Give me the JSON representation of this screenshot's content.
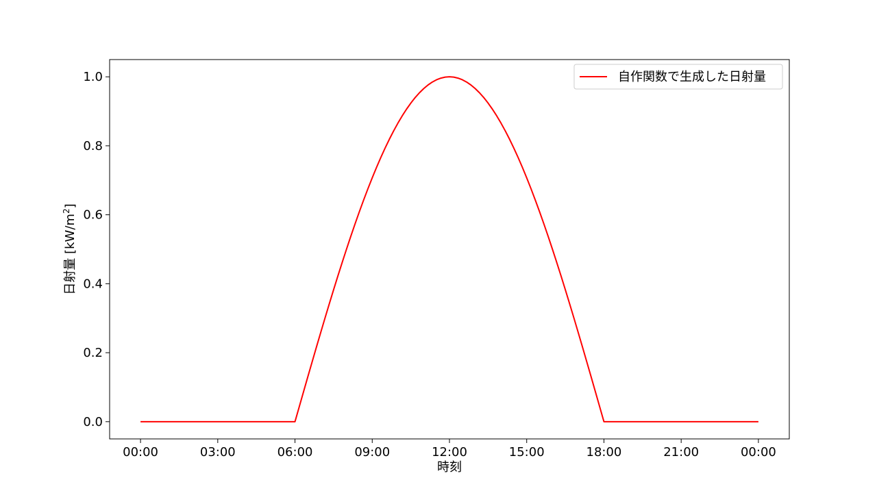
{
  "chart_data": {
    "type": "line",
    "title": "",
    "xlabel": "時刻",
    "ylabel": "日射量 [kW/m²]",
    "ylabel_parts": {
      "main": "日射量 [kW/m",
      "sup": "2",
      "end": "]"
    },
    "x_ticks": [
      "00:00",
      "03:00",
      "06:00",
      "09:00",
      "12:00",
      "15:00",
      "18:00",
      "21:00",
      "00:00"
    ],
    "y_ticks": [
      "0.0",
      "0.2",
      "0.4",
      "0.6",
      "0.8",
      "1.0"
    ],
    "xlim_hours": [
      -1.2,
      25.2
    ],
    "ylim": [
      -0.05,
      1.05
    ],
    "grid": false,
    "legend_position": "top-right",
    "series": [
      {
        "name": "自作関数で生成した日射量",
        "color": "#ff0000",
        "x_hours": [
          0,
          1,
          2,
          3,
          4,
          5,
          6,
          7,
          8,
          9,
          10,
          11,
          12,
          13,
          14,
          15,
          16,
          17,
          18,
          19,
          20,
          21,
          22,
          23,
          24
        ],
        "values": [
          0,
          0,
          0,
          0,
          0,
          0,
          0,
          0.2588,
          0.5,
          0.7071,
          0.866,
          0.9659,
          1.0,
          0.9659,
          0.866,
          0.7071,
          0.5,
          0.2588,
          0,
          0,
          0,
          0,
          0,
          0,
          0
        ]
      }
    ]
  }
}
